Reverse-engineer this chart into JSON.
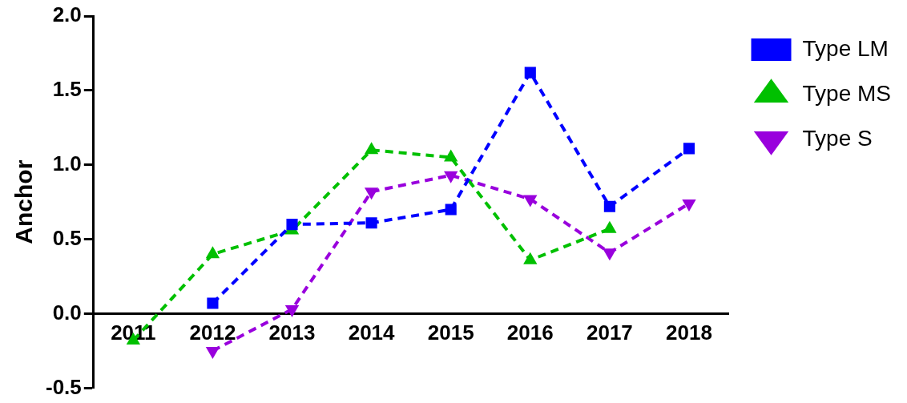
{
  "chart_data": {
    "type": "line",
    "ylabel": "Anchor",
    "categories": [
      "2011",
      "2012",
      "2013",
      "2014",
      "2015",
      "2016",
      "2017",
      "2018"
    ],
    "series": [
      {
        "name": "Type LM",
        "color": "#0000ff",
        "marker": "square",
        "line_style": "dashed",
        "values": [
          null,
          0.07,
          0.6,
          0.61,
          0.7,
          1.62,
          0.72,
          1.11
        ]
      },
      {
        "name": "Type MS",
        "color": "#00c000",
        "marker": "triangle",
        "line_style": "dashed",
        "values": [
          -0.18,
          0.4,
          0.56,
          1.1,
          1.05,
          0.36,
          0.57,
          null
        ]
      },
      {
        "name": "Type S",
        "color": "#9900dd",
        "marker": "triangle-down",
        "line_style": "dashed",
        "values": [
          null,
          -0.25,
          0.03,
          0.82,
          0.93,
          0.77,
          0.41,
          0.74
        ]
      }
    ],
    "ylim": [
      -0.5,
      2.0
    ],
    "yticks": [
      -0.5,
      {
        "value": 0,
        "label": "0.0"
      },
      0.5,
      {
        "value": 1,
        "label": "1.0"
      },
      1.5,
      {
        "value": 2,
        "label": "2.0"
      }
    ],
    "grid": false,
    "legend": "top right"
  }
}
